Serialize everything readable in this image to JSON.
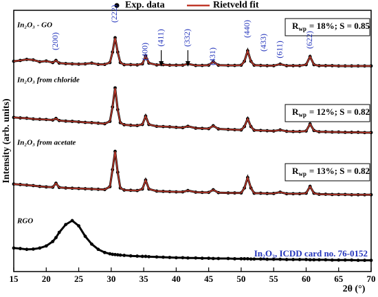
{
  "chart_data": {
    "type": "xrd",
    "xlabel": "2θ (°)",
    "ylabel": "Intensity (arb. units)",
    "legend": [
      "Exp. data",
      "Rietveld fit"
    ],
    "exp_color": "#000000",
    "fit_color": "#c0392b",
    "xlim": [
      15,
      70
    ],
    "xticks": [
      15,
      20,
      25,
      30,
      35,
      40,
      45,
      50,
      55,
      60,
      65,
      70
    ],
    "ylim": [
      0,
      100
    ],
    "x": [
      15,
      16,
      17,
      18,
      19,
      20,
      21,
      21.5,
      22,
      23,
      24,
      25,
      26,
      27,
      28,
      29,
      29.8,
      30.2,
      30.6,
      31,
      31.4,
      32,
      33,
      34,
      34.8,
      35.3,
      35.8,
      37,
      38,
      39,
      40,
      41,
      41.8,
      43,
      44,
      45,
      45.7,
      46.5,
      48,
      49,
      50,
      50.5,
      51,
      51.5,
      52,
      53,
      54,
      55,
      56,
      57,
      58,
      59,
      60,
      60.6,
      61.2,
      62,
      63,
      64,
      65,
      66,
      67,
      68,
      69,
      70
    ],
    "samples": [
      {
        "label": "In₂O₃ - GO",
        "exp": [
          80.5,
          80.8,
          81.2,
          81,
          80.3,
          80.6,
          80,
          80.8,
          79.8,
          79.6,
          79.5,
          79.4,
          79.5,
          79.8,
          79.3,
          79.3,
          80,
          84,
          89.5,
          84,
          80,
          79.2,
          79.2,
          79.1,
          79.5,
          82.5,
          79.8,
          79.1,
          79.2,
          79,
          79,
          79,
          79.5,
          78.9,
          78.9,
          79,
          80.3,
          79,
          78.9,
          78.9,
          79,
          80.5,
          84.5,
          80.5,
          79,
          78.9,
          78.8,
          78.8,
          79.4,
          78.8,
          78.8,
          78.8,
          79.2,
          82.3,
          79.2,
          78.8,
          78.8,
          78.8,
          78.7,
          78.7,
          78.7,
          78.7,
          78.7,
          78.7
        ],
        "fit": [
          80.5,
          80.8,
          81.2,
          81,
          80.3,
          80.6,
          80,
          80.8,
          79.8,
          79.6,
          79.5,
          79.4,
          79.5,
          79.8,
          79.3,
          79.3,
          80,
          84,
          89.5,
          84,
          80,
          79.2,
          79.2,
          79.1,
          79.5,
          82.5,
          79.8,
          79.1,
          79.2,
          79,
          79,
          79,
          79.5,
          78.9,
          78.9,
          79,
          80.3,
          79,
          78.9,
          78.9,
          79,
          80.5,
          84.5,
          80.5,
          79,
          78.9,
          78.8,
          78.8,
          79.4,
          78.8,
          78.8,
          78.8,
          79.2,
          82.3,
          79.2,
          78.8,
          78.8,
          78.8,
          78.7,
          78.7,
          78.7,
          78.7,
          78.7,
          78.7
        ],
        "fit_quality": {
          "symbol": "R",
          "subscript": "wp",
          "text": "= 18%; S = 0.85"
        }
      },
      {
        "label": "In₂O₃ from chloride",
        "exp": [
          59,
          58.8,
          58.7,
          58.4,
          58.3,
          58.2,
          58,
          58.6,
          57.8,
          57.6,
          57.5,
          57.3,
          57.1,
          57,
          56.8,
          56.6,
          57.5,
          63,
          70.3,
          62,
          57,
          56.2,
          56,
          55.9,
          56.3,
          59.5,
          56.3,
          55.6,
          55.5,
          55.4,
          55.2,
          55.1,
          55.6,
          54.9,
          54.8,
          54.7,
          55.8,
          54.6,
          54.4,
          54.3,
          54.2,
          55.5,
          58.5,
          55.5,
          54.1,
          54,
          53.9,
          53.8,
          54.2,
          53.7,
          53.6,
          53.6,
          53.8,
          56.5,
          54,
          53.5,
          53.5,
          53.4,
          53.4,
          53.3,
          53.3,
          53.3,
          53.2,
          53.2
        ],
        "fit": [
          59,
          58.8,
          58.7,
          58.4,
          58.3,
          58.2,
          58,
          58.6,
          57.8,
          57.6,
          57.5,
          57.3,
          57.1,
          57,
          56.8,
          56.6,
          57.5,
          63,
          70.3,
          62,
          57,
          56.2,
          56,
          55.9,
          56.3,
          59.5,
          56.3,
          55.6,
          55.5,
          55.4,
          55.2,
          55.1,
          55.6,
          54.9,
          54.8,
          54.7,
          55.8,
          54.6,
          54.4,
          54.3,
          54.2,
          55.5,
          58.5,
          55.5,
          54.1,
          54,
          53.9,
          53.8,
          54.2,
          53.7,
          53.6,
          53.6,
          53.8,
          56.5,
          54,
          53.5,
          53.5,
          53.4,
          53.4,
          53.3,
          53.3,
          53.3,
          53.2,
          53.2
        ],
        "fit_quality": {
          "symbol": "R",
          "subscript": "wp",
          "text": "= 12%; S = 0.82"
        }
      },
      {
        "label": "In₂O₃ from acetate",
        "exp": [
          33.5,
          33.3,
          33.1,
          32.9,
          32.6,
          32.4,
          32.3,
          33.8,
          32.2,
          32,
          31.9,
          31.8,
          31.7,
          31.6,
          31.5,
          31.4,
          32.5,
          39,
          46,
          38,
          32,
          31.2,
          31.1,
          31,
          31.6,
          35,
          31.6,
          30.8,
          30.7,
          30.6,
          30.5,
          30.5,
          31,
          30.4,
          30.3,
          30.3,
          31.3,
          30.2,
          30.1,
          30.1,
          30.1,
          32,
          36,
          32,
          30,
          30,
          29.9,
          29.9,
          30.4,
          29.8,
          29.8,
          29.8,
          30,
          32.6,
          30,
          29.6,
          29.6,
          29.5,
          29.5,
          29.5,
          29.4,
          29.4,
          29.4,
          29.4
        ],
        "fit": [
          33.5,
          33.3,
          33.1,
          32.9,
          32.6,
          32.4,
          32.3,
          33.8,
          32.2,
          32,
          31.9,
          31.8,
          31.7,
          31.6,
          31.5,
          31.4,
          32.5,
          39,
          46,
          38,
          32,
          31.2,
          31.1,
          31,
          31.6,
          35,
          31.6,
          30.8,
          30.7,
          30.6,
          30.5,
          30.5,
          31,
          30.4,
          30.3,
          30.3,
          31.3,
          30.2,
          30.1,
          30.1,
          30.1,
          32,
          36,
          32,
          30,
          30,
          29.9,
          29.9,
          30.4,
          29.8,
          29.8,
          29.8,
          30,
          32.6,
          30,
          29.6,
          29.6,
          29.5,
          29.5,
          29.5,
          29.4,
          29.4,
          29.4,
          29.4
        ],
        "fit_quality": {
          "symbol": "R",
          "subscript": "wp",
          "text": "= 13%; S = 0.82"
        }
      },
      {
        "label": "RGO",
        "exp": [
          9,
          8.8,
          8.5,
          8.6,
          9,
          9.8,
          11.5,
          13,
          15,
          18,
          19.5,
          17.5,
          13.5,
          10.5,
          8.5,
          7.3,
          6.8,
          6.6,
          6.5,
          6.4,
          6.3,
          6.2,
          6,
          5.9,
          5.8,
          5.8,
          5.7,
          5.6,
          5.5,
          5.4,
          5.3,
          5.3,
          5.2,
          5.2,
          5.1,
          5.1,
          5,
          5,
          5,
          4.9,
          4.9,
          4.9,
          4.9,
          4.8,
          4.8,
          4.8,
          4.7,
          4.7,
          4.7,
          4.6,
          4.6,
          4.6,
          4.6,
          4.5,
          4.5,
          4.5,
          4.5,
          4.4,
          4.4,
          4.4,
          4.4,
          4.3,
          4.3,
          4.3
        ]
      }
    ],
    "peak_labels": [
      {
        "label": "(200)",
        "x": 21.5
      },
      {
        "label": "(222)",
        "x": 30.6
      },
      {
        "label": "(400)",
        "x": 35.3
      },
      {
        "label": "(411)",
        "x": 37.7,
        "arrow": true
      },
      {
        "label": "(332)",
        "x": 41.8,
        "arrow": true
      },
      {
        "label": "(431)",
        "x": 45.7
      },
      {
        "label": "(440)",
        "x": 51
      },
      {
        "label": "(433)",
        "x": 53.5
      },
      {
        "label": "(611)",
        "x": 56
      },
      {
        "label": "(622)",
        "x": 60.6
      }
    ],
    "peak_label_color": "#2233bb",
    "reference": "In₂O₃, ICDD card no. 76-0152"
  }
}
